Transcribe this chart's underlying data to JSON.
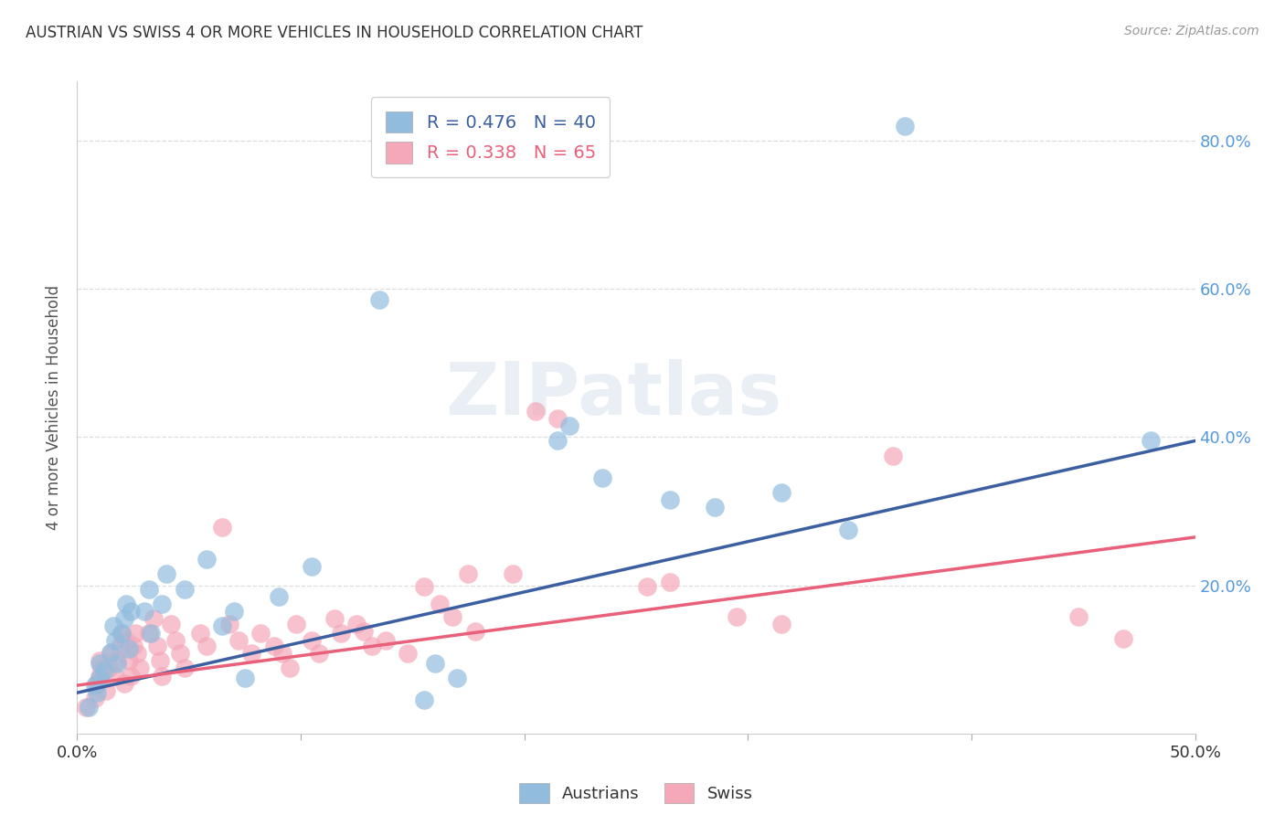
{
  "title": "AUSTRIAN VS SWISS 4 OR MORE VEHICLES IN HOUSEHOLD CORRELATION CHART",
  "source": "Source: ZipAtlas.com",
  "ylabel_label": "4 or more Vehicles in Household",
  "xlim": [
    0.0,
    0.5
  ],
  "ylim": [
    0.0,
    0.88
  ],
  "watermark": "ZIPatlas",
  "legend_blue_r": "R = 0.476",
  "legend_blue_n": "N = 40",
  "legend_pink_r": "R = 0.338",
  "legend_pink_n": "N = 65",
  "legend_label_blue": "Austrians",
  "legend_label_pink": "Swiss",
  "blue_color": "#92BCDE",
  "pink_color": "#F4A8B8",
  "line_blue_color": "#3B5FA0",
  "line_pink_color": "#E8607A",
  "blue_scatter": [
    [
      0.005,
      0.035
    ],
    [
      0.008,
      0.065
    ],
    [
      0.009,
      0.055
    ],
    [
      0.01,
      0.075
    ],
    [
      0.01,
      0.095
    ],
    [
      0.012,
      0.085
    ],
    [
      0.015,
      0.11
    ],
    [
      0.016,
      0.145
    ],
    [
      0.017,
      0.125
    ],
    [
      0.018,
      0.095
    ],
    [
      0.02,
      0.135
    ],
    [
      0.021,
      0.155
    ],
    [
      0.022,
      0.175
    ],
    [
      0.023,
      0.115
    ],
    [
      0.024,
      0.165
    ],
    [
      0.03,
      0.165
    ],
    [
      0.032,
      0.195
    ],
    [
      0.033,
      0.135
    ],
    [
      0.038,
      0.175
    ],
    [
      0.04,
      0.215
    ],
    [
      0.048,
      0.195
    ],
    [
      0.058,
      0.235
    ],
    [
      0.065,
      0.145
    ],
    [
      0.07,
      0.165
    ],
    [
      0.075,
      0.075
    ],
    [
      0.09,
      0.185
    ],
    [
      0.105,
      0.225
    ],
    [
      0.135,
      0.585
    ],
    [
      0.155,
      0.045
    ],
    [
      0.16,
      0.095
    ],
    [
      0.17,
      0.075
    ],
    [
      0.215,
      0.395
    ],
    [
      0.22,
      0.415
    ],
    [
      0.235,
      0.345
    ],
    [
      0.265,
      0.315
    ],
    [
      0.285,
      0.305
    ],
    [
      0.315,
      0.325
    ],
    [
      0.345,
      0.275
    ],
    [
      0.37,
      0.82
    ],
    [
      0.48,
      0.395
    ]
  ],
  "pink_scatter": [
    [
      0.004,
      0.035
    ],
    [
      0.008,
      0.048
    ],
    [
      0.009,
      0.068
    ],
    [
      0.01,
      0.078
    ],
    [
      0.01,
      0.098
    ],
    [
      0.011,
      0.088
    ],
    [
      0.013,
      0.058
    ],
    [
      0.014,
      0.088
    ],
    [
      0.015,
      0.108
    ],
    [
      0.017,
      0.078
    ],
    [
      0.018,
      0.098
    ],
    [
      0.019,
      0.118
    ],
    [
      0.02,
      0.135
    ],
    [
      0.021,
      0.068
    ],
    [
      0.022,
      0.125
    ],
    [
      0.023,
      0.098
    ],
    [
      0.024,
      0.078
    ],
    [
      0.025,
      0.118
    ],
    [
      0.026,
      0.135
    ],
    [
      0.027,
      0.108
    ],
    [
      0.028,
      0.088
    ],
    [
      0.032,
      0.135
    ],
    [
      0.034,
      0.155
    ],
    [
      0.036,
      0.118
    ],
    [
      0.037,
      0.098
    ],
    [
      0.038,
      0.078
    ],
    [
      0.042,
      0.148
    ],
    [
      0.044,
      0.125
    ],
    [
      0.046,
      0.108
    ],
    [
      0.048,
      0.088
    ],
    [
      0.055,
      0.135
    ],
    [
      0.058,
      0.118
    ],
    [
      0.065,
      0.278
    ],
    [
      0.068,
      0.148
    ],
    [
      0.072,
      0.125
    ],
    [
      0.078,
      0.108
    ],
    [
      0.082,
      0.135
    ],
    [
      0.088,
      0.118
    ],
    [
      0.092,
      0.108
    ],
    [
      0.095,
      0.088
    ],
    [
      0.098,
      0.148
    ],
    [
      0.105,
      0.125
    ],
    [
      0.108,
      0.108
    ],
    [
      0.115,
      0.155
    ],
    [
      0.118,
      0.135
    ],
    [
      0.125,
      0.148
    ],
    [
      0.128,
      0.138
    ],
    [
      0.132,
      0.118
    ],
    [
      0.138,
      0.125
    ],
    [
      0.148,
      0.108
    ],
    [
      0.155,
      0.198
    ],
    [
      0.162,
      0.175
    ],
    [
      0.168,
      0.158
    ],
    [
      0.175,
      0.215
    ],
    [
      0.178,
      0.138
    ],
    [
      0.195,
      0.215
    ],
    [
      0.205,
      0.435
    ],
    [
      0.215,
      0.425
    ],
    [
      0.255,
      0.198
    ],
    [
      0.265,
      0.205
    ],
    [
      0.295,
      0.158
    ],
    [
      0.315,
      0.148
    ],
    [
      0.365,
      0.375
    ],
    [
      0.448,
      0.158
    ],
    [
      0.468,
      0.128
    ]
  ],
  "blue_line": [
    [
      0.0,
      0.055
    ],
    [
      0.5,
      0.395
    ]
  ],
  "pink_line": [
    [
      0.0,
      0.065
    ],
    [
      0.5,
      0.265
    ]
  ],
  "right_ytick_vals": [
    0.2,
    0.4,
    0.6,
    0.8
  ],
  "right_ytick_labels": [
    "20.0%",
    "40.0%",
    "60.0%",
    "80.0%"
  ],
  "grid_vals": [
    0.2,
    0.4,
    0.6,
    0.8
  ],
  "grid_color": "#DDDDDD",
  "background_color": "#FFFFFF",
  "tick_color": "#5599DD"
}
